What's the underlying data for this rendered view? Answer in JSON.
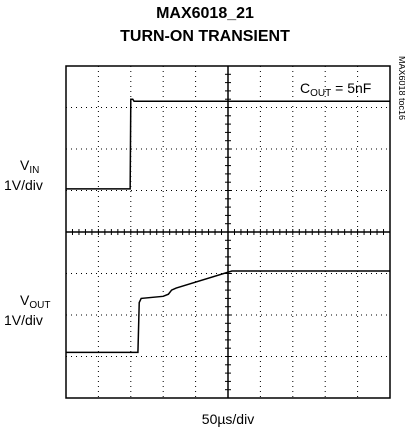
{
  "chart_data": {
    "type": "scope",
    "title": [
      "MAX6018_21",
      "TURN-ON TRANSIENT"
    ],
    "side_label": "MAX6018 toc16",
    "annotation": {
      "main": "C",
      "sub": "OUT",
      "rest": " = 5nF"
    },
    "x_label": "50µs/div",
    "channels": [
      {
        "main": "V",
        "sub": "IN",
        "scale": "1V/div"
      },
      {
        "main": "V",
        "sub": "OUT",
        "scale": "1V/div"
      }
    ],
    "xlim": [
      0,
      500
    ],
    "ylim": [
      0,
      8
    ],
    "xticks": [
      0,
      50,
      100,
      150,
      200,
      250,
      300,
      350,
      400,
      450,
      500
    ],
    "yticks": [
      0,
      1,
      2,
      3,
      4,
      5,
      6,
      7,
      8
    ],
    "grid": true,
    "series": [
      {
        "name": "VIN",
        "color": "#000000",
        "x": [
          0,
          99,
          100,
          103,
          105,
          500
        ],
        "values": [
          5.04,
          5.04,
          7.2,
          7.2,
          7.15,
          7.15
        ]
      },
      {
        "name": "VOUT",
        "color": "#000000",
        "x": [
          0,
          111,
          113,
          116,
          150,
          158,
          163,
          170,
          256,
          500
        ],
        "values": [
          1.1,
          1.1,
          2.3,
          2.4,
          2.45,
          2.5,
          2.6,
          2.65,
          3.06,
          3.06
        ]
      }
    ]
  }
}
